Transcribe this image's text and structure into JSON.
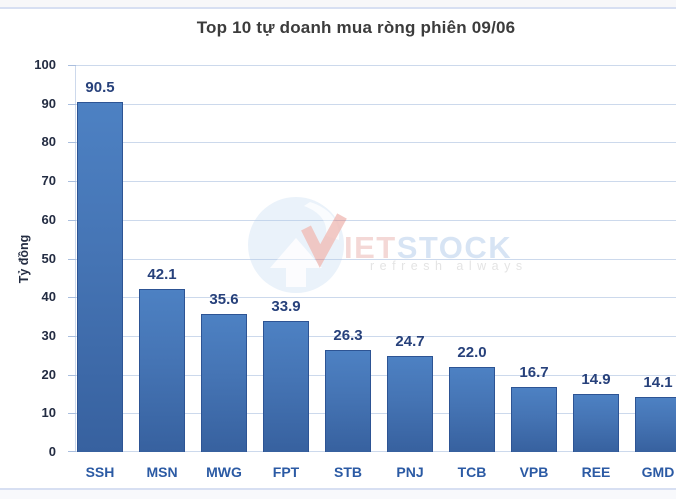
{
  "chart_data": {
    "type": "bar",
    "title": "Top 10 tự doanh mua ròng phiên 09/06",
    "xlabel": "",
    "ylabel": "Tỷ đồng",
    "categories": [
      "SSH",
      "MSN",
      "MWG",
      "FPT",
      "STB",
      "PNJ",
      "TCB",
      "VPB",
      "REE",
      "GMD"
    ],
    "values": [
      90.5,
      42.1,
      35.6,
      33.9,
      26.3,
      24.7,
      22.0,
      16.7,
      14.9,
      14.1
    ],
    "value_labels": [
      "90.5",
      "42.1",
      "35.6",
      "33.9",
      "26.3",
      "24.7",
      "22.0",
      "16.7",
      "14.9",
      "14.1"
    ],
    "ylim": [
      0,
      100
    ],
    "yticks": [
      0,
      10,
      20,
      30,
      40,
      50,
      60,
      70,
      80,
      90,
      100
    ],
    "grid": true,
    "legend": "none",
    "colors": {
      "bar_top": "#4d81c3",
      "bar_bottom": "#37619f",
      "bar_border": "#2d5494",
      "gridline": "#ccd9ec",
      "value_label": "#27417b",
      "category_label": "#2b5aa4",
      "axis_label": "#232c42",
      "title": "#3c3c3c"
    }
  },
  "watermark": {
    "brand_red": "IET",
    "brand_blue": "STOCK",
    "tagline": "refresh always",
    "logo_colors": {
      "globe": "#b3cfec",
      "check": "#dd6a5e",
      "brand_red_text": "#e7aba6",
      "brand_blue_text": "#a8c5e8",
      "tagline_text": "#c4c4c4"
    }
  }
}
